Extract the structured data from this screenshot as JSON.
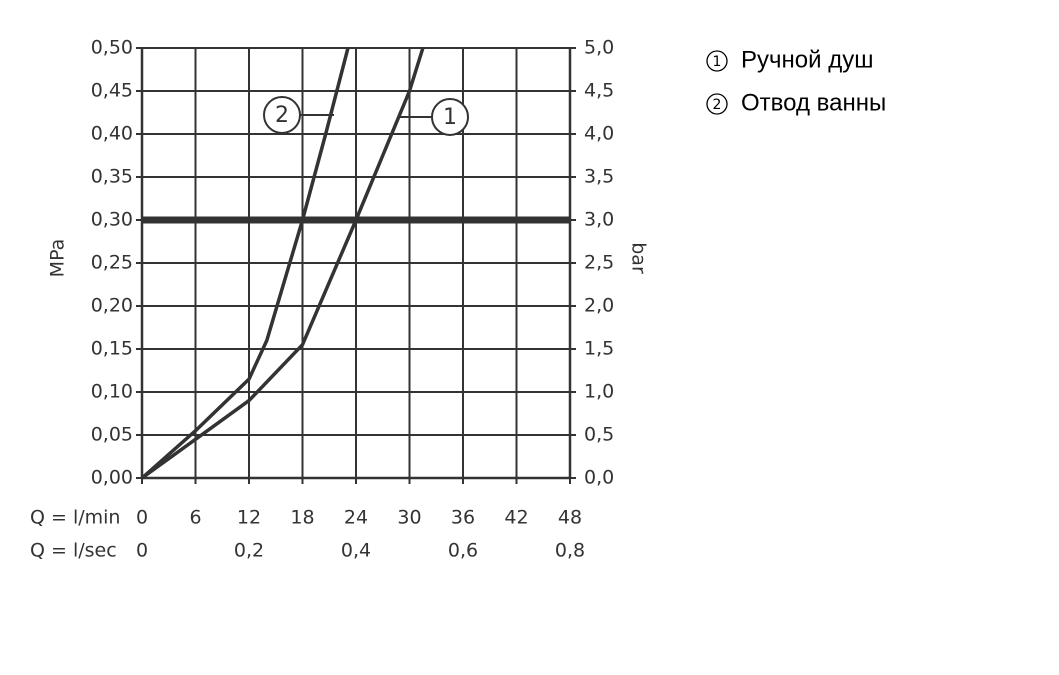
{
  "chart_data": {
    "type": "line",
    "ylabel": "MPa",
    "y2label": "bar",
    "xlabel": "Q = l/min",
    "x2label": "Q = l/sec",
    "xlim": [
      0,
      48
    ],
    "xticks": [
      0,
      6,
      12,
      18,
      24,
      30,
      36,
      42,
      48
    ],
    "x2lim": [
      0,
      0.8
    ],
    "x2ticks": [
      0,
      {
        "value": 0.2,
        "label": "0,2"
      },
      {
        "value": 0.4,
        "label": "0,4"
      },
      {
        "value": 0.6,
        "label": "0,6"
      },
      {
        "value": 0.8,
        "label": "0,8"
      }
    ],
    "ylim": [
      0,
      0.5
    ],
    "yticks": [
      {
        "value": 0,
        "label": "0,00"
      },
      {
        "value": 0.05,
        "label": "0,05"
      },
      {
        "value": 0.1,
        "label": "0,10"
      },
      {
        "value": 0.15,
        "label": "0,15"
      },
      {
        "value": 0.2,
        "label": "0,20"
      },
      {
        "value": 0.25,
        "label": "0,25"
      },
      {
        "value": 0.3,
        "label": "0,30"
      },
      {
        "value": 0.35,
        "label": "0,35"
      },
      {
        "value": 0.4,
        "label": "0,40"
      },
      {
        "value": 0.45,
        "label": "0,45"
      },
      {
        "value": 0.5,
        "label": "0,50"
      }
    ],
    "y2lim": [
      0,
      5
    ],
    "y2ticks": [
      {
        "value": 0,
        "label": "0,0"
      },
      {
        "value": 0.5,
        "label": "0,5"
      },
      {
        "value": 1,
        "label": "1,0"
      },
      {
        "value": 1.5,
        "label": "1,5"
      },
      {
        "value": 2,
        "label": "2,0"
      },
      {
        "value": 2.5,
        "label": "2,5"
      },
      {
        "value": 3,
        "label": "3,0"
      },
      {
        "value": 3.5,
        "label": "3,5"
      },
      {
        "value": 4,
        "label": "4,0"
      },
      {
        "value": 4.5,
        "label": "4,5"
      },
      {
        "value": 5,
        "label": "5,0"
      }
    ],
    "grid": true,
    "hline": 0.3,
    "vlines": [
      18,
      24
    ],
    "series": [
      {
        "name": "Ручной душ",
        "label": "1",
        "color": "#333333",
        "x": [
          0,
          6,
          12,
          18,
          24,
          27,
          30,
          31.5
        ],
        "values": [
          0,
          0.045,
          0.09,
          0.155,
          0.3,
          0.375,
          0.45,
          0.5
        ]
      },
      {
        "name": "Отвод ванны",
        "label": "2",
        "color": "#333333",
        "x": [
          0,
          6,
          12,
          14,
          18,
          20.6,
          23.1
        ],
        "values": [
          0,
          0.055,
          0.115,
          0.16,
          0.3,
          0.4,
          0.5
        ]
      }
    ]
  }
}
